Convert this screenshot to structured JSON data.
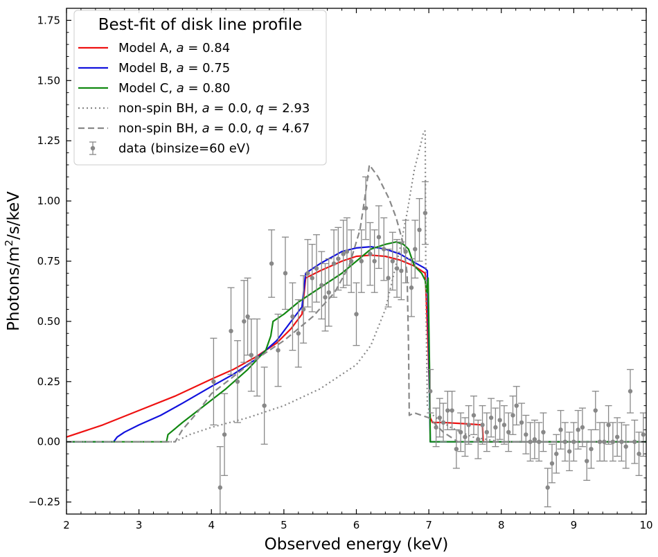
{
  "chart_data": {
    "type": "line",
    "title": "",
    "xlabel": "Observed energy (keV)",
    "ylabel": "Photons/m²/s/keV",
    "xlim": [
      2,
      10
    ],
    "ylim": [
      -0.3,
      1.8
    ],
    "xticks": [
      "2",
      "3",
      "4",
      "5",
      "6",
      "7",
      "8",
      "9",
      "10"
    ],
    "yticks": [
      "−0.25",
      "0.00",
      "0.25",
      "0.50",
      "0.75",
      "1.00",
      "1.25",
      "1.50",
      "1.75"
    ],
    "legend": {
      "title": "Best-fit of disk line profile",
      "placement": "top-left",
      "entries": [
        {
          "label": "Model A, a = 0.84",
          "parts": [
            [
              "Model A, ",
              ""
            ],
            [
              "a",
              "it"
            ],
            [
              " = 0.84",
              ""
            ]
          ],
          "style": "solid",
          "color": "#ee1111"
        },
        {
          "label": "Model B, a = 0.75",
          "parts": [
            [
              "Model B, ",
              ""
            ],
            [
              "a",
              "it"
            ],
            [
              " = 0.75",
              ""
            ]
          ],
          "style": "solid",
          "color": "#1111dd"
        },
        {
          "label": "Model C, a = 0.80",
          "parts": [
            [
              "Model C, ",
              ""
            ],
            [
              "a",
              "it"
            ],
            [
              " = 0.80",
              ""
            ]
          ],
          "style": "solid",
          "color": "#118811"
        },
        {
          "label": "non-spin BH, a = 0.0, q = 2.93",
          "parts": [
            [
              "non-spin BH, ",
              ""
            ],
            [
              "a",
              "it"
            ],
            [
              " = 0.0, ",
              ""
            ],
            [
              "q",
              "it"
            ],
            [
              " = 2.93",
              ""
            ]
          ],
          "style": "dotted",
          "color": "#888888"
        },
        {
          "label": "non-spin BH, a = 0.0, q = 4.67",
          "parts": [
            [
              "non-spin BH, ",
              ""
            ],
            [
              "a",
              "it"
            ],
            [
              " = 0.0, ",
              ""
            ],
            [
              "q",
              "it"
            ],
            [
              " = 4.67",
              ""
            ]
          ],
          "style": "dashed",
          "color": "#888888"
        },
        {
          "label": "data (binsize=60 eV)",
          "parts": [
            [
              "data (binsize=60 eV)",
              ""
            ]
          ],
          "style": "errorbar",
          "color": "#888888"
        }
      ]
    },
    "series": [
      {
        "name": "Model A, a = 0.84",
        "color": "#ee1111",
        "style": "solid",
        "x": [
          2.0,
          2.5,
          3.0,
          3.5,
          4.0,
          4.3,
          4.6,
          4.9,
          5.1,
          5.25,
          5.3,
          5.5,
          5.8,
          6.0,
          6.2,
          6.4,
          6.6,
          6.8,
          6.95,
          6.99,
          7.02,
          7.05,
          7.2,
          7.5,
          7.74,
          7.75,
          8.0,
          10.0
        ],
        "y": [
          0.02,
          0.07,
          0.13,
          0.19,
          0.26,
          0.3,
          0.35,
          0.41,
          0.47,
          0.53,
          0.68,
          0.71,
          0.75,
          0.77,
          0.775,
          0.77,
          0.755,
          0.73,
          0.7,
          0.4,
          0.1,
          0.08,
          0.08,
          0.075,
          0.07,
          0.0,
          0.0,
          0.0
        ]
      },
      {
        "name": "Model B, a = 0.75",
        "color": "#1111dd",
        "style": "solid",
        "x": [
          2.0,
          2.65,
          2.7,
          2.8,
          3.0,
          3.3,
          3.6,
          4.0,
          4.3,
          4.6,
          4.9,
          5.1,
          5.25,
          5.3,
          5.5,
          5.8,
          6.0,
          6.2,
          6.4,
          6.6,
          6.8,
          6.95,
          6.98,
          7.0,
          7.02,
          10.0
        ],
        "y": [
          0.0,
          0.0,
          0.02,
          0.04,
          0.07,
          0.11,
          0.16,
          0.23,
          0.28,
          0.34,
          0.42,
          0.5,
          0.56,
          0.7,
          0.74,
          0.79,
          0.805,
          0.81,
          0.8,
          0.78,
          0.745,
          0.72,
          0.71,
          0.4,
          0.0,
          0.0
        ]
      },
      {
        "name": "Model C, a = 0.80",
        "color": "#118811",
        "style": "solid",
        "x": [
          2.0,
          3.38,
          3.4,
          3.6,
          3.9,
          4.2,
          4.5,
          4.75,
          4.82,
          4.85,
          5.0,
          5.2,
          5.5,
          5.8,
          6.0,
          6.2,
          6.4,
          6.55,
          6.65,
          6.72,
          6.8,
          6.9,
          6.95,
          6.97,
          6.99,
          7.01,
          7.02,
          10.0
        ],
        "y": [
          0.0,
          0.0,
          0.03,
          0.08,
          0.15,
          0.22,
          0.3,
          0.38,
          0.44,
          0.5,
          0.53,
          0.58,
          0.64,
          0.7,
          0.75,
          0.8,
          0.82,
          0.83,
          0.82,
          0.8,
          0.73,
          0.7,
          0.67,
          0.62,
          0.68,
          0.3,
          0.0,
          0.0
        ]
      },
      {
        "name": "non-spin BH, a = 0.0, q = 2.93",
        "color": "#888888",
        "style": "dotted",
        "x": [
          2.0,
          3.5,
          3.7,
          4.0,
          4.5,
          5.0,
          5.5,
          6.0,
          6.2,
          6.4,
          6.6,
          6.7,
          6.8,
          6.9,
          6.93,
          6.95,
          6.96,
          6.98,
          7.02,
          7.1,
          7.3,
          7.6,
          8.0,
          10.0
        ],
        "y": [
          0.0,
          0.0,
          0.03,
          0.06,
          0.1,
          0.15,
          0.22,
          0.32,
          0.4,
          0.55,
          0.8,
          0.95,
          1.13,
          1.25,
          1.29,
          1.29,
          0.6,
          0.15,
          0.12,
          0.1,
          0.06,
          0.02,
          0.0,
          0.0
        ]
      },
      {
        "name": "non-spin BH, a = 0.0, q = 4.67",
        "color": "#888888",
        "style": "dashed",
        "x": [
          2.0,
          3.5,
          3.6,
          3.8,
          4.0,
          4.3,
          4.6,
          5.0,
          5.4,
          5.7,
          5.9,
          6.05,
          6.12,
          6.18,
          6.3,
          6.45,
          6.55,
          6.65,
          6.7,
          6.72,
          6.73,
          6.8,
          6.9,
          7.0,
          7.1,
          7.2,
          7.4,
          10.0
        ],
        "y": [
          0.0,
          0.0,
          0.05,
          0.12,
          0.2,
          0.27,
          0.34,
          0.42,
          0.52,
          0.62,
          0.73,
          0.88,
          1.02,
          1.15,
          1.1,
          1.01,
          0.93,
          0.82,
          0.7,
          0.4,
          0.11,
          0.12,
          0.11,
          0.1,
          0.07,
          0.04,
          0.0,
          0.0
        ]
      }
    ],
    "data_points": {
      "name": "data (binsize=60 eV)",
      "color": "#888888",
      "x": [
        4.03,
        4.12,
        4.18,
        4.27,
        4.36,
        4.45,
        4.5,
        4.55,
        4.63,
        4.73,
        4.83,
        4.92,
        5.02,
        5.12,
        5.2,
        5.27,
        5.33,
        5.39,
        5.45,
        5.52,
        5.57,
        5.62,
        5.69,
        5.75,
        5.82,
        5.87,
        5.93,
        6.0,
        6.07,
        6.13,
        6.19,
        6.25,
        6.31,
        6.38,
        6.44,
        6.5,
        6.56,
        6.62,
        6.68,
        6.76,
        6.81,
        6.87,
        6.95,
        7.02,
        7.1,
        7.15,
        7.2,
        7.26,
        7.32,
        7.38,
        7.44,
        7.5,
        7.55,
        7.62,
        7.68,
        7.74,
        7.8,
        7.86,
        7.92,
        7.98,
        8.04,
        8.1,
        8.16,
        8.21,
        8.28,
        8.34,
        8.4,
        8.46,
        8.52,
        8.58,
        8.64,
        8.7,
        8.76,
        8.82,
        8.88,
        8.94,
        9.0,
        9.06,
        9.12,
        9.18,
        9.24,
        9.3,
        9.36,
        9.42,
        9.48,
        9.54,
        9.6,
        9.66,
        9.72,
        9.78,
        9.84,
        9.9,
        9.96
      ],
      "y": [
        0.25,
        -0.19,
        0.03,
        0.46,
        0.25,
        0.5,
        0.52,
        0.36,
        0.35,
        0.15,
        0.74,
        0.38,
        0.7,
        0.52,
        0.45,
        0.55,
        0.7,
        0.68,
        0.72,
        0.65,
        0.6,
        0.62,
        0.74,
        0.76,
        0.78,
        0.79,
        0.75,
        0.53,
        0.75,
        0.97,
        0.78,
        0.75,
        0.85,
        0.8,
        0.68,
        0.75,
        0.72,
        0.71,
        0.79,
        0.64,
        0.8,
        0.88,
        0.95,
        0.21,
        0.06,
        0.1,
        0.08,
        0.13,
        0.13,
        -0.03,
        0.04,
        0.02,
        0.07,
        0.11,
        0.01,
        0.07,
        0.04,
        0.1,
        0.06,
        0.09,
        0.07,
        0.04,
        0.11,
        0.15,
        0.08,
        0.03,
        0.0,
        0.01,
        0.0,
        0.04,
        -0.19,
        -0.09,
        -0.05,
        0.05,
        0.0,
        -0.04,
        0.0,
        0.05,
        0.06,
        -0.08,
        -0.03,
        0.13,
        0.0,
        0.0,
        0.07,
        0.0,
        0.02,
        0.0,
        -0.02,
        0.21,
        0.0,
        -0.05,
        0.03
      ],
      "err": [
        0.18,
        0.17,
        0.17,
        0.18,
        0.17,
        0.17,
        0.16,
        0.15,
        0.16,
        0.16,
        0.14,
        0.15,
        0.15,
        0.14,
        0.14,
        0.14,
        0.14,
        0.14,
        0.14,
        0.14,
        0.14,
        0.14,
        0.14,
        0.13,
        0.14,
        0.14,
        0.13,
        0.13,
        0.13,
        0.13,
        0.13,
        0.13,
        0.13,
        0.13,
        0.12,
        0.12,
        0.12,
        0.12,
        0.13,
        0.12,
        0.12,
        0.13,
        0.13,
        0.09,
        0.08,
        0.08,
        0.08,
        0.08,
        0.08,
        0.08,
        0.08,
        0.08,
        0.08,
        0.08,
        0.08,
        0.08,
        0.08,
        0.08,
        0.08,
        0.08,
        0.08,
        0.08,
        0.08,
        0.08,
        0.08,
        0.08,
        0.08,
        0.08,
        0.08,
        0.08,
        0.08,
        0.08,
        0.08,
        0.08,
        0.08,
        0.08,
        0.08,
        0.08,
        0.08,
        0.08,
        0.08,
        0.08,
        0.08,
        0.08,
        0.08,
        0.08,
        0.08,
        0.08,
        0.09,
        0.09,
        0.09,
        0.09,
        0.09
      ]
    }
  }
}
